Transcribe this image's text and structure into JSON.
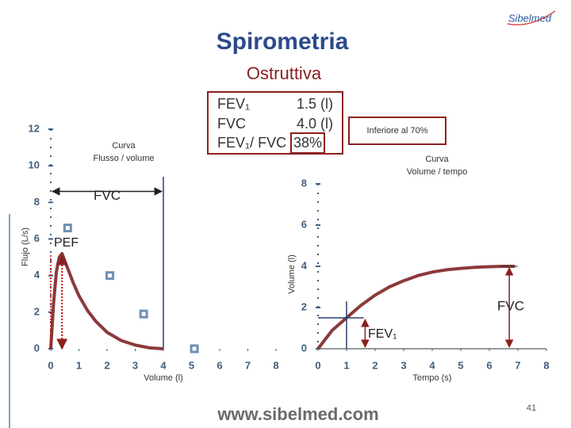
{
  "slide": {
    "title": "Spirometria",
    "subtitle": "Ostruttiva",
    "logo": "Sibelmed",
    "url": "www.sibelmed.com",
    "page": "41",
    "results": [
      [
        "FEV₁",
        "1.5 (l)"
      ],
      [
        "FVC",
        "4.0 (l)"
      ],
      [
        "FEV₁/ FVC",
        "38%"
      ]
    ],
    "note": "Inferiore al 70%"
  },
  "chart_data": [
    {
      "type": "line",
      "title": [
        "Curva",
        "Flusso / volume"
      ],
      "x_label": "Volume (l)",
      "y_label": "Flujo (L/s)",
      "xlim": [
        0,
        8
      ],
      "xticks": [
        0,
        1,
        2,
        3,
        4,
        5,
        6,
        7,
        8
      ],
      "ylim": [
        0,
        12
      ],
      "yticks": [
        0,
        2,
        4,
        6,
        8,
        10,
        12
      ],
      "annotations": [
        "FVC",
        "PEF"
      ],
      "series": [
        {
          "type": "line",
          "color": "#8b3a3a",
          "x": [
            0,
            0.1,
            0.2,
            0.3,
            0.4,
            0.6,
            0.8,
            1.0,
            1.3,
            1.6,
            2.0,
            2.5,
            3.0,
            3.5,
            4.0
          ],
          "values": [
            0,
            2.5,
            4.2,
            5.0,
            5.2,
            4.4,
            3.6,
            2.9,
            2.1,
            1.5,
            0.9,
            0.45,
            0.2,
            0.05,
            0
          ]
        },
        {
          "type": "scatter",
          "color": "#6f8fb3",
          "x": [
            0.6,
            2.1,
            3.3,
            5.1
          ],
          "values": [
            6.6,
            4.0,
            1.9,
            0
          ]
        }
      ]
    },
    {
      "type": "line",
      "title": [
        "Curva",
        "Volume / tempo"
      ],
      "x_label": "Tempo (s)",
      "y_label": "Volume (l)",
      "xlim": [
        0,
        8
      ],
      "xticks": [
        0,
        1,
        2,
        3,
        4,
        5,
        6,
        7,
        8
      ],
      "ylim": [
        0,
        8
      ],
      "yticks": [
        0,
        2,
        4,
        6,
        8
      ],
      "annotations": [
        "FVC",
        "FEV₁"
      ],
      "series": [
        {
          "type": "line",
          "color": "#8b3a3a",
          "x": [
            0,
            0.5,
            1,
            1.5,
            2,
            2.5,
            3,
            3.5,
            4,
            4.5,
            5,
            5.5,
            6,
            6.5,
            6.9
          ],
          "values": [
            0,
            0.9,
            1.5,
            2.1,
            2.6,
            3.0,
            3.3,
            3.55,
            3.72,
            3.83,
            3.9,
            3.95,
            3.98,
            4.0,
            4.0
          ]
        }
      ]
    }
  ]
}
